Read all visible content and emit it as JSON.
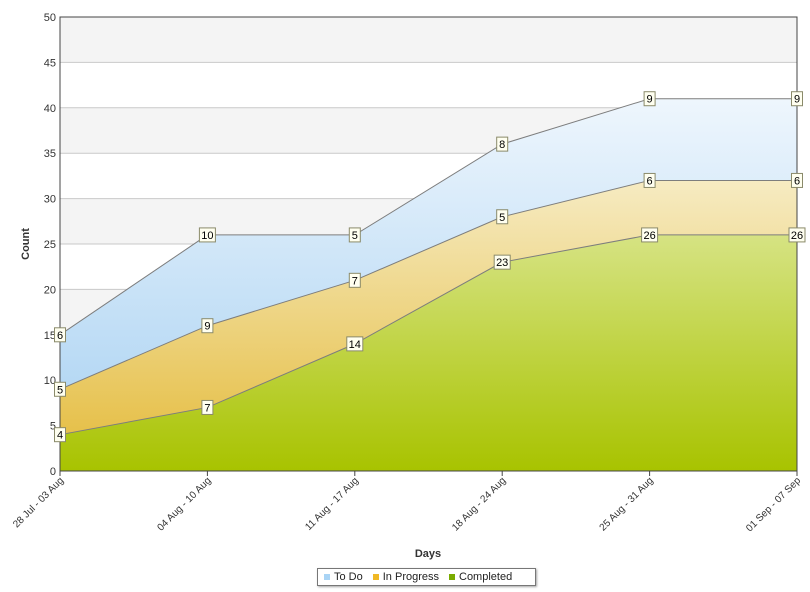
{
  "chart_data": {
    "type": "area",
    "stacked": true,
    "title": "",
    "xlabel": "Days",
    "ylabel": "Count",
    "ylim": [
      0,
      50
    ],
    "yticks": [
      0,
      5,
      10,
      15,
      20,
      25,
      30,
      35,
      40,
      45,
      50
    ],
    "grid": true,
    "legend_position": "bottom",
    "categories": [
      "28 Jul - 03 Aug",
      "04 Aug - 10 Aug",
      "11 Aug - 17 Aug",
      "18 Aug - 24 Aug",
      "25 Aug - 31 Aug",
      "01 Sep - 07 Sep"
    ],
    "series": [
      {
        "name": "Completed",
        "values": [
          4,
          7,
          14,
          23,
          26,
          26
        ],
        "color": "#a8c300"
      },
      {
        "name": "In Progress",
        "values": [
          5,
          9,
          7,
          5,
          6,
          6
        ],
        "color": "#e8c544"
      },
      {
        "name": "To Do",
        "values": [
          6,
          10,
          5,
          8,
          9,
          9
        ],
        "color": "#b5d9f5"
      }
    ]
  },
  "legend": {
    "items": [
      {
        "label": "To Do",
        "color": "#a9d4f5"
      },
      {
        "label": "In Progress",
        "color": "#f0b824"
      },
      {
        "label": "Completed",
        "color": "#7aab00"
      }
    ]
  }
}
